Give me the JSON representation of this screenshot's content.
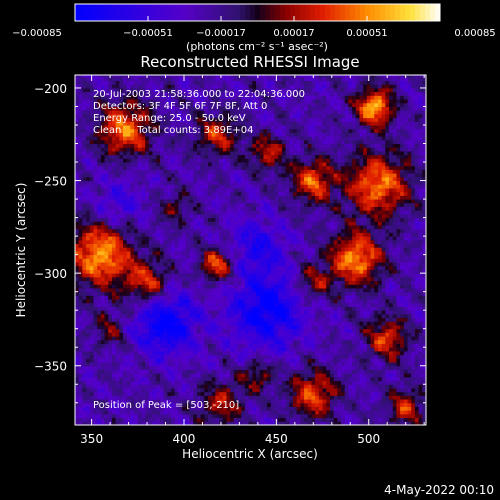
{
  "chart_data": {
    "type": "heatmap",
    "title": "Reconstructed RHESSI Image",
    "xlabel": "Heliocentric X (arcsec)",
    "ylabel": "Heliocentric Y (arcsec)",
    "xlim": [
      341,
      531
    ],
    "ylim": [
      -382,
      -193
    ],
    "x_ticks": [
      350,
      400,
      450,
      500
    ],
    "x_tick_labels": [
      "350",
      "400",
      "450",
      "500"
    ],
    "y_ticks": [
      -200,
      -250,
      -300,
      -350
    ],
    "y_tick_labels": [
      "−200",
      "−250",
      "−300",
      "−350"
    ],
    "colorbar": {
      "range": [
        -0.00085,
        0.00085
      ],
      "tick_values": [
        -0.00085,
        -0.00051,
        -0.00017,
        0.00017,
        0.00051,
        0.00085
      ],
      "tick_labels": [
        "−0.00085",
        "−0.00051",
        "−0.00017",
        "0.00017",
        "0.00051",
        "0.00085"
      ],
      "unit_text": "(photons cm⁻² s⁻¹ asec⁻²)",
      "colormap": [
        "#0000ff",
        "#5500ff",
        "#ffffff",
        "#ffaa00",
        "#ff0000",
        "#ffffff"
      ]
    },
    "annotations": [
      "20-Jul-2003 21:58:36.000 to 22:04:36.000",
      "Detectors: 3F 4F 5F 6F 7F 8F, Att 0",
      "Energy Range: 25.0 - 50.0 keV",
      "Clean     Total counts: 3.89E+04",
      "Position of Peak = [503,-210]"
    ],
    "peak": [
      503,
      -210
    ],
    "sources": [
      {
        "x": 503,
        "y": -210,
        "amp": 0.00085,
        "sigma": 7
      },
      {
        "x": 368,
        "y": -222,
        "amp": 0.0007,
        "sigma": 10
      },
      {
        "x": 505,
        "y": -252,
        "amp": 0.0007,
        "sigma": 12
      },
      {
        "x": 470,
        "y": -250,
        "amp": 0.00065,
        "sigma": 8
      },
      {
        "x": 418,
        "y": -225,
        "amp": 0.0005,
        "sigma": 8
      },
      {
        "x": 445,
        "y": -235,
        "amp": 0.00045,
        "sigma": 7
      },
      {
        "x": 355,
        "y": -290,
        "amp": 0.0008,
        "sigma": 12
      },
      {
        "x": 380,
        "y": -305,
        "amp": 0.00055,
        "sigma": 8
      },
      {
        "x": 418,
        "y": -295,
        "amp": 0.00065,
        "sigma": 6
      },
      {
        "x": 493,
        "y": -292,
        "amp": 0.00075,
        "sigma": 10
      },
      {
        "x": 470,
        "y": -305,
        "amp": 0.0004,
        "sigma": 7
      },
      {
        "x": 360,
        "y": -330,
        "amp": 0.0003,
        "sigma": 7
      },
      {
        "x": 510,
        "y": -335,
        "amp": 0.00055,
        "sigma": 8
      },
      {
        "x": 470,
        "y": -365,
        "amp": 0.0006,
        "sigma": 9
      },
      {
        "x": 420,
        "y": -370,
        "amp": 0.00045,
        "sigma": 8
      },
      {
        "x": 440,
        "y": -355,
        "amp": 0.0004,
        "sigma": 6
      },
      {
        "x": 520,
        "y": -372,
        "amp": 0.0005,
        "sigma": 7
      },
      {
        "x": 395,
        "y": -265,
        "amp": 0.0003,
        "sigma": 6
      }
    ],
    "negative_sources": [
      {
        "x": 390,
        "y": -327,
        "amp": -0.0006,
        "sigma": 12
      },
      {
        "x": 445,
        "y": -320,
        "amp": -0.0006,
        "sigma": 14
      },
      {
        "x": 440,
        "y": -285,
        "amp": -0.0004,
        "sigma": 10
      },
      {
        "x": 365,
        "y": -262,
        "amp": -0.0003,
        "sigma": 9
      }
    ]
  },
  "footer": {
    "date": "4-May-2022 00:10"
  }
}
